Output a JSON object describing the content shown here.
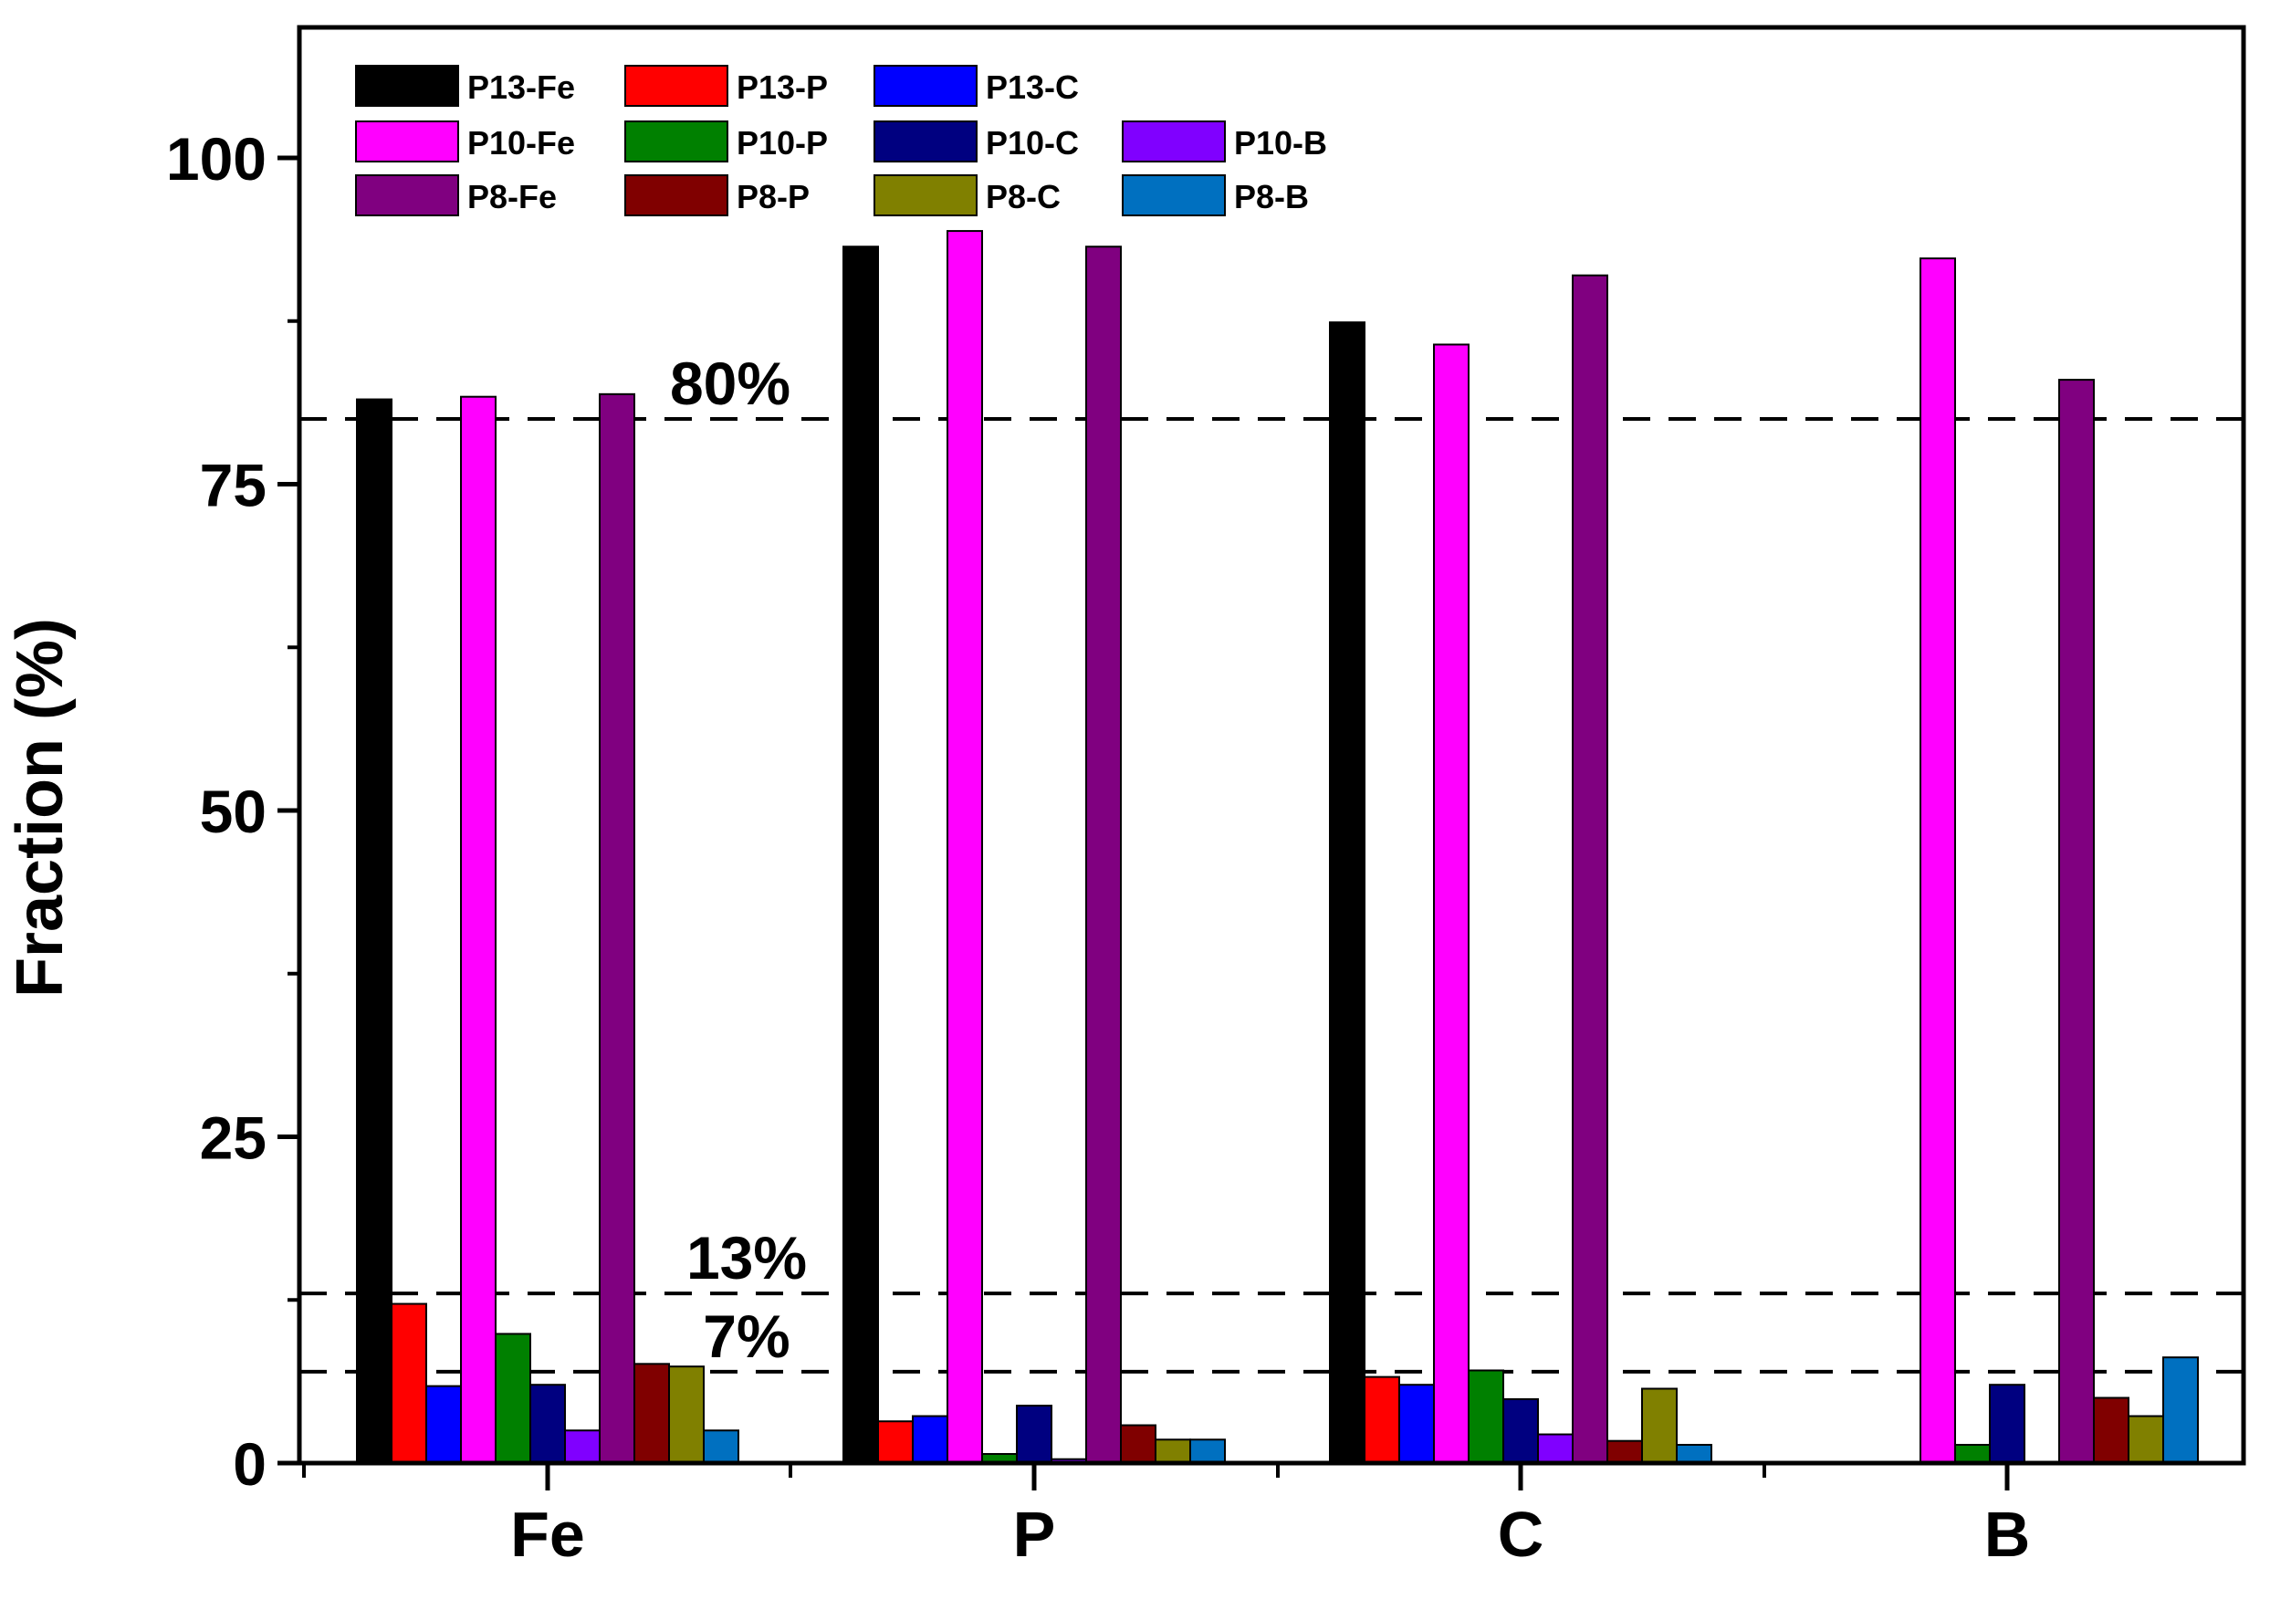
{
  "chart_data": {
    "type": "bar",
    "title": "",
    "xlabel": "",
    "ylabel": "Fraction (%)",
    "ylim": [
      0,
      110
    ],
    "yticks": [
      0,
      25,
      50,
      75,
      100
    ],
    "categories": [
      "Fe",
      "P",
      "C",
      "B"
    ],
    "legend_position": "top-left",
    "series": [
      {
        "name": "P13-Fe",
        "color": "#000000",
        "values": [
          81.5,
          93.2,
          87.4,
          null
        ]
      },
      {
        "name": "P13-P",
        "color": "#ff0000",
        "values": [
          12.2,
          3.2,
          6.6,
          null
        ]
      },
      {
        "name": "P13-C",
        "color": "#0000ff",
        "values": [
          5.9,
          3.6,
          6.0,
          null
        ]
      },
      {
        "name": "P10-Fe",
        "color": "#ff00ff",
        "values": [
          81.7,
          94.4,
          85.7,
          92.3
        ]
      },
      {
        "name": "P10-P",
        "color": "#008000",
        "values": [
          9.9,
          0.7,
          7.1,
          1.4
        ]
      },
      {
        "name": "P10-C",
        "color": "#000080",
        "values": [
          6.0,
          4.4,
          4.9,
          6.0
        ]
      },
      {
        "name": "P10-B",
        "color": "#8000ff",
        "values": [
          2.5,
          0.3,
          2.2,
          null
        ]
      },
      {
        "name": "P8-Fe",
        "color": "#800080",
        "values": [
          81.9,
          93.2,
          91.0,
          83.0
        ]
      },
      {
        "name": "P8-P",
        "color": "#800000",
        "values": [
          7.6,
          2.9,
          1.7,
          5.0
        ]
      },
      {
        "name": "P8-C",
        "color": "#808000",
        "values": [
          7.4,
          1.8,
          5.7,
          3.6
        ]
      },
      {
        "name": "P8-B",
        "color": "#0070c0",
        "values": [
          2.5,
          1.8,
          1.4,
          8.1
        ]
      }
    ],
    "reference_lines": [
      {
        "value": 80,
        "label": "80%"
      },
      {
        "value": 13,
        "label": "13%"
      },
      {
        "value": 7,
        "label": "7%"
      }
    ]
  }
}
